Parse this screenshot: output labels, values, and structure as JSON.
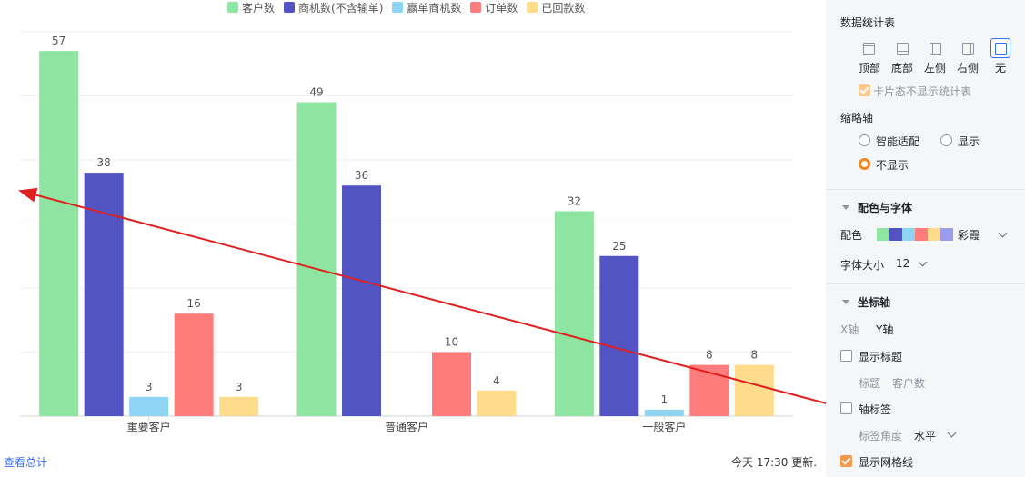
{
  "chart_data": {
    "type": "bar",
    "categories": [
      "重要客户",
      "普通客户",
      "一般客户"
    ],
    "series": [
      {
        "name": "客户数",
        "color": "#8de5a1",
        "values": [
          57,
          49,
          32
        ]
      },
      {
        "name": "商机数(不含输单)",
        "color": "#5254c4",
        "values": [
          38,
          36,
          25
        ]
      },
      {
        "name": "赢单商机数",
        "color": "#8ed4f3",
        "values": [
          3,
          null,
          1
        ]
      },
      {
        "name": "订单数",
        "color": "#ff7c7c",
        "values": [
          16,
          10,
          8
        ]
      },
      {
        "name": "已回款数",
        "color": "#ffdb8c",
        "values": [
          3,
          4,
          8
        ]
      }
    ],
    "ylim": [
      0,
      60
    ],
    "yticks": [
      0,
      10,
      20,
      30,
      40,
      50,
      60
    ],
    "grid": true,
    "legend_position": "top",
    "annotation_arrow_color": "#e02020"
  },
  "footer": {
    "view_total": "查看总计",
    "update_text": "今天 17:30 更新."
  },
  "panel": {
    "stats_table": {
      "title": "数据统计表",
      "positions": [
        {
          "label": "顶部",
          "icon": "top-position-icon",
          "selected": false
        },
        {
          "label": "底部",
          "icon": "bottom-position-icon",
          "selected": false
        },
        {
          "label": "左侧",
          "icon": "left-position-icon",
          "selected": false
        },
        {
          "label": "右侧",
          "icon": "right-position-icon",
          "selected": false
        },
        {
          "label": "无",
          "icon": "none-position-icon",
          "selected": true
        }
      ],
      "card_hide_label": "卡片态不显示统计表"
    },
    "thumbnail_axis": {
      "title": "缩略轴",
      "smart_label": "智能适配",
      "show_label": "显示",
      "hide_label": "不显示",
      "selected": "不显示"
    },
    "color_font": {
      "title": "配色与字体",
      "color_label": "配色",
      "palette": [
        "#8de5a1",
        "#5254c4",
        "#8ed4f3",
        "#ff7c7c",
        "#ffdb8c",
        "#9d9df0"
      ],
      "palette_name": "彩霞",
      "font_size_label": "字体大小",
      "font_size_value": "12"
    },
    "axis": {
      "title": "坐标轴",
      "x_tab": "X轴",
      "y_tab": "Y轴",
      "show_title_label": "显示标题",
      "title_label": "标题",
      "title_value": "客户数",
      "axis_tick_label": "轴标签",
      "tick_angle_label": "标签角度",
      "tick_angle_value": "水平",
      "gridline_label": "显示网格线"
    }
  }
}
